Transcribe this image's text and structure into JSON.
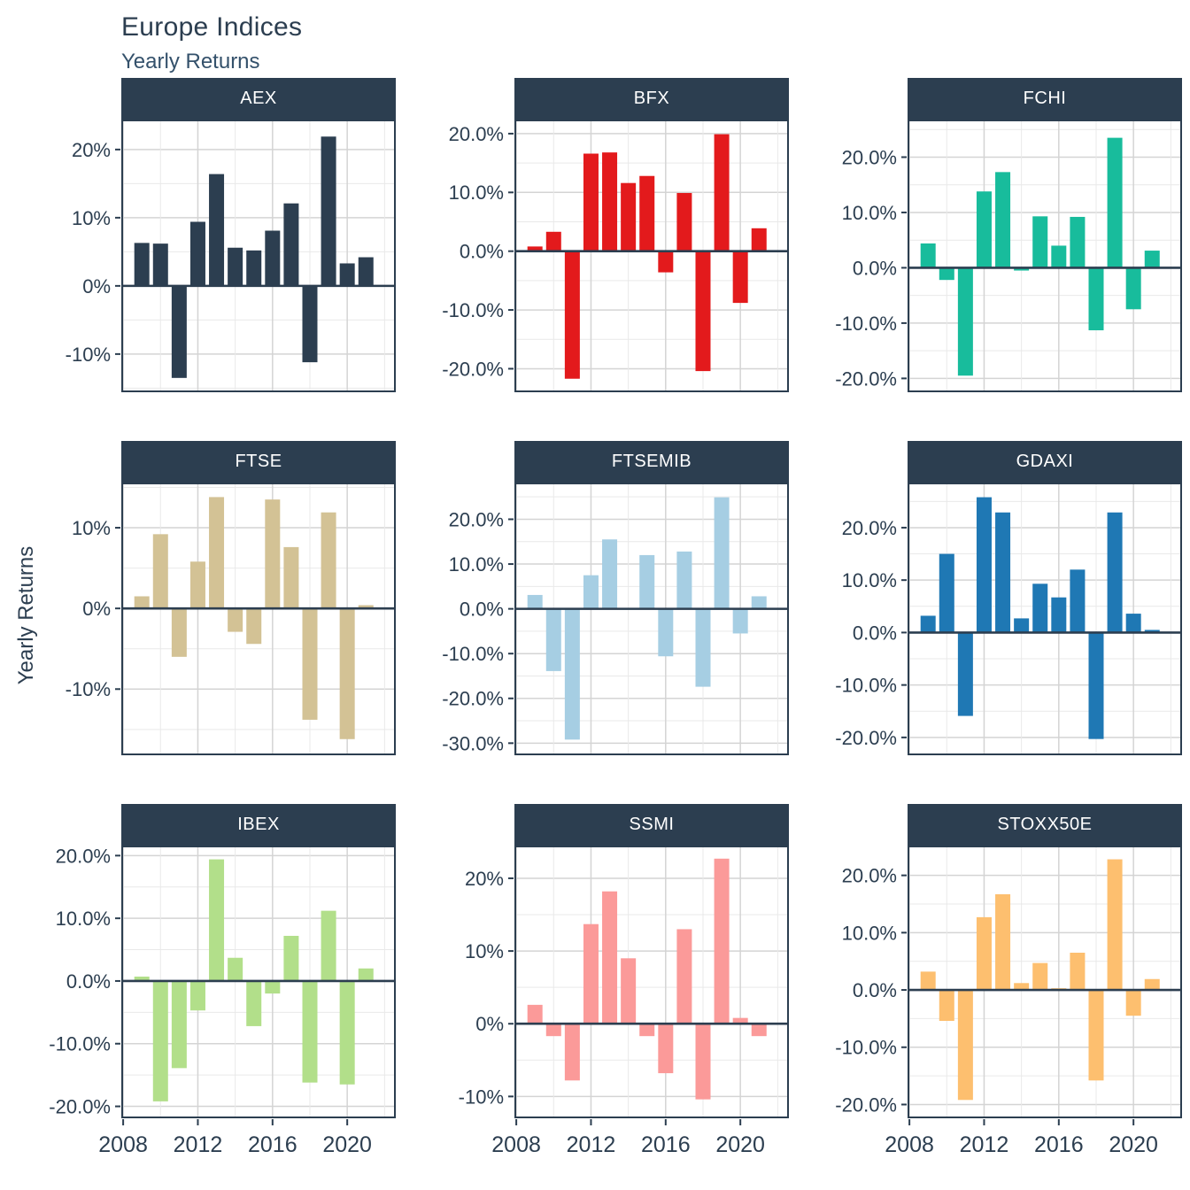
{
  "page": {
    "title": "Europe Indices",
    "subtitle": "Yearly Returns",
    "y_axis_label": "Yearly Returns"
  },
  "chart_data": {
    "type": "bar",
    "layout_hint": "3x3 facet grid, one bar series per facet, shared x axis 2008-2022, grid on, no legend",
    "title": "Europe Indices",
    "subtitle": "Yearly Returns",
    "ylabel": "Yearly Returns",
    "years": [
      2009,
      2010,
      2011,
      2012,
      2013,
      2014,
      2015,
      2016,
      2017,
      2018,
      2019,
      2020,
      2021
    ],
    "x_axis": {
      "xlim": [
        2007.9,
        2022.6
      ],
      "tick_years": [
        2008,
        2012,
        2016,
        2020
      ],
      "tick_labels": [
        "2008",
        "2012",
        "2016",
        "2020"
      ],
      "minor_gridline_years": [
        2010,
        2014,
        2018,
        2022
      ]
    },
    "panels": [
      {
        "name": "AEX",
        "color": "#2C3E50",
        "ylim": [
          -15.6,
          24.4
        ],
        "yticks": [
          {
            "v": 20,
            "label": "20%"
          },
          {
            "v": 10,
            "label": "10%"
          },
          {
            "v": 0,
            "label": "0%"
          },
          {
            "v": -10,
            "label": "-10%"
          }
        ],
        "values": [
          6.3,
          6.2,
          -13.5,
          9.4,
          16.4,
          5.6,
          5.2,
          8.1,
          12.1,
          -11.2,
          21.9,
          3.3,
          4.2
        ]
      },
      {
        "name": "BFX",
        "color": "#E31A1C",
        "ylim": [
          -24.0,
          22.4
        ],
        "yticks": [
          {
            "v": 20,
            "label": "20.0%"
          },
          {
            "v": 10,
            "label": "10.0%"
          },
          {
            "v": 0,
            "label": "0.0%"
          },
          {
            "v": -10,
            "label": "-10.0%"
          },
          {
            "v": -20,
            "label": "-20.0%"
          }
        ],
        "values": [
          0.8,
          3.3,
          -21.7,
          16.6,
          16.8,
          11.6,
          12.8,
          -3.6,
          9.9,
          -20.4,
          19.9,
          -8.8,
          3.9
        ]
      },
      {
        "name": "FCHI",
        "color": "#18BC9C",
        "ylim": [
          -22.5,
          26.8
        ],
        "yticks": [
          {
            "v": 20,
            "label": "20.0%"
          },
          {
            "v": 10,
            "label": "10.0%"
          },
          {
            "v": 0,
            "label": "0.0%"
          },
          {
            "v": -10,
            "label": "-10.0%"
          },
          {
            "v": -20,
            "label": "-20.0%"
          }
        ],
        "values": [
          4.4,
          -2.2,
          -19.5,
          13.8,
          17.3,
          -0.5,
          9.3,
          4.0,
          9.2,
          -11.3,
          23.5,
          -7.5,
          3.1
        ]
      },
      {
        "name": "FTSE",
        "color": "#D3C295",
        "ylim": [
          -18.2,
          15.6
        ],
        "yticks": [
          {
            "v": 10,
            "label": "10%"
          },
          {
            "v": 0,
            "label": "0%"
          },
          {
            "v": -10,
            "label": "-10%"
          }
        ],
        "values": [
          1.5,
          9.2,
          -6.0,
          5.8,
          13.8,
          -2.9,
          -4.4,
          13.5,
          7.6,
          -13.8,
          11.9,
          -16.2,
          0.4
        ]
      },
      {
        "name": "FTSEMIB",
        "color": "#A6CEE3",
        "ylim": [
          -32.7,
          28.2
        ],
        "yticks": [
          {
            "v": 20,
            "label": "20.0%"
          },
          {
            "v": 10,
            "label": "10.0%"
          },
          {
            "v": 0,
            "label": "0.0%"
          },
          {
            "v": -10,
            "label": "-10.0%"
          },
          {
            "v": -20,
            "label": "-20.0%"
          },
          {
            "v": -30,
            "label": "-30.0%"
          }
        ],
        "values": [
          3.1,
          -13.9,
          -29.2,
          7.5,
          15.5,
          0.2,
          12.0,
          -10.6,
          12.8,
          -17.4,
          24.9,
          -5.5,
          2.8
        ]
      },
      {
        "name": "GDAXI",
        "color": "#1F78B4",
        "ylim": [
          -23.4,
          28.6
        ],
        "yticks": [
          {
            "v": 20,
            "label": "20.0%"
          },
          {
            "v": 10,
            "label": "10.0%"
          },
          {
            "v": 0,
            "label": "0.0%"
          },
          {
            "v": -10,
            "label": "-10.0%"
          },
          {
            "v": -20,
            "label": "-20.0%"
          }
        ],
        "values": [
          3.2,
          15.0,
          -15.9,
          25.8,
          22.9,
          2.7,
          9.3,
          6.7,
          12.0,
          -20.3,
          22.9,
          3.6,
          0.5
        ]
      },
      {
        "name": "IBEX",
        "color": "#B2DF8A",
        "ylim": [
          -21.9,
          21.6
        ],
        "yticks": [
          {
            "v": 20,
            "label": "20.0%"
          },
          {
            "v": 10,
            "label": "10.0%"
          },
          {
            "v": 0,
            "label": "0.0%"
          },
          {
            "v": -10,
            "label": "-10.0%"
          },
          {
            "v": -20,
            "label": "-20.0%"
          }
        ],
        "values": [
          0.7,
          -19.2,
          -13.9,
          -4.7,
          19.4,
          3.7,
          -7.2,
          -2.0,
          7.2,
          -16.2,
          11.2,
          -16.5,
          2.0
        ]
      },
      {
        "name": "SSMI",
        "color": "#FB9A99",
        "ylim": [
          -13.0,
          24.5
        ],
        "yticks": [
          {
            "v": 20,
            "label": "20%"
          },
          {
            "v": 10,
            "label": "10%"
          },
          {
            "v": 0,
            "label": "0%"
          },
          {
            "v": -10,
            "label": "-10%"
          }
        ],
        "values": [
          2.6,
          -1.7,
          -7.8,
          13.7,
          18.2,
          9.0,
          -1.7,
          -6.8,
          13.0,
          -10.4,
          22.7,
          0.8,
          -1.7
        ]
      },
      {
        "name": "STOXX50E",
        "color": "#FDBF6F",
        "ylim": [
          -22.4,
          25.2
        ],
        "yticks": [
          {
            "v": 20,
            "label": "20.0%"
          },
          {
            "v": 10,
            "label": "10.0%"
          },
          {
            "v": 0,
            "label": "0.0%"
          },
          {
            "v": -10,
            "label": "-10.0%"
          },
          {
            "v": -20,
            "label": "-20.0%"
          }
        ],
        "values": [
          3.2,
          -5.4,
          -19.2,
          12.7,
          16.7,
          1.2,
          4.7,
          0.3,
          6.5,
          -15.8,
          22.8,
          -4.5,
          1.9
        ]
      }
    ],
    "theme": {
      "header_bg": "#2C3E50",
      "header_text": "#FFFFFF",
      "axis_text": "#2C3E50",
      "grid_major": "#D4D4D4",
      "grid_minor": "#E9E9E9",
      "zero_line": "#2C3E50",
      "panel_border": "#2C3E50",
      "background": "#FFFFFF"
    }
  }
}
